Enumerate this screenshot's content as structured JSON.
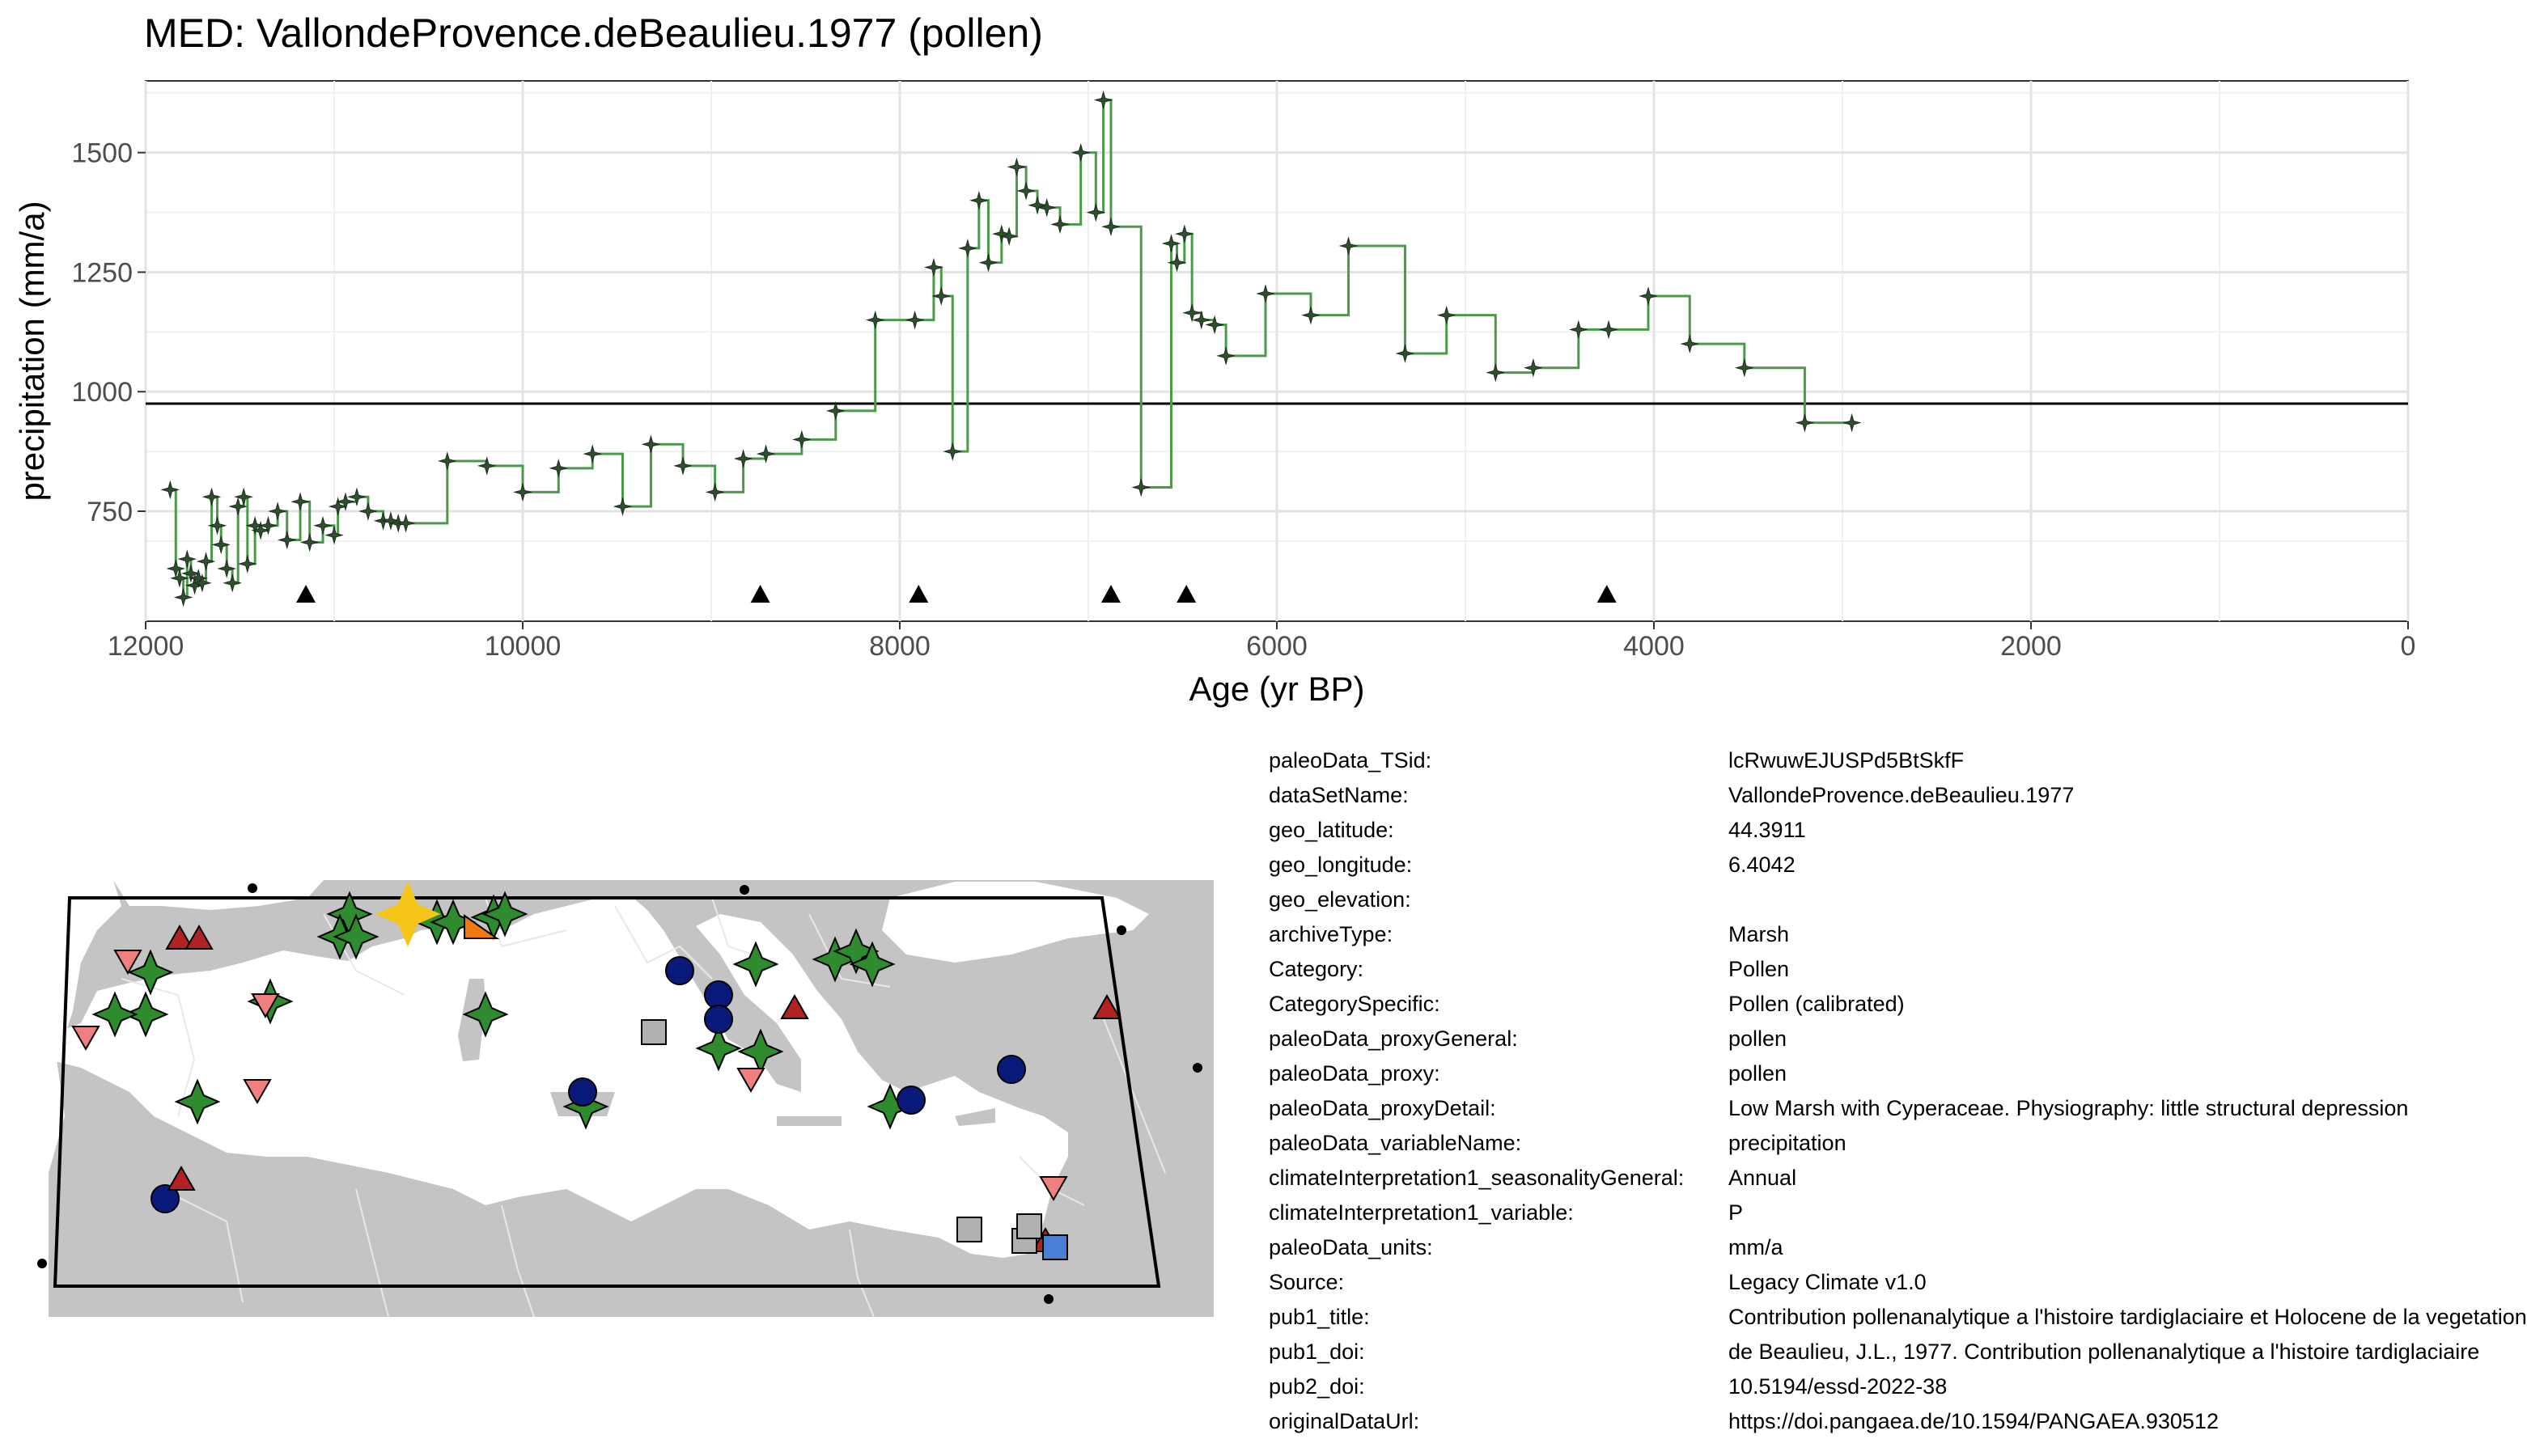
{
  "chart_data": {
    "type": "line",
    "title": "MED: VallondeProvence.deBeaulieu.1977 (pollen)",
    "xlabel": "Age (yr BP)",
    "ylabel": "precipitation (mm/a)",
    "x_reversed": true,
    "xlim": [
      12000,
      0
    ],
    "ylim": [
      520,
      1650
    ],
    "xticks": [
      12000,
      10000,
      8000,
      6000,
      4000,
      2000,
      0
    ],
    "xtick_labels": [
      "12000",
      "10000",
      "8000",
      "6000",
      "4000",
      "2000",
      "0"
    ],
    "yticks": [
      750,
      1000,
      1250,
      1500
    ],
    "ytick_labels": [
      "750",
      "1000",
      "1250",
      "1500"
    ],
    "grid": true,
    "step": true,
    "line_color": "#4a9a4a",
    "marker_color": "#2f4f2f",
    "reference_line": 975,
    "series": [
      {
        "x": [
          11870,
          11840,
          11820,
          11800,
          11780,
          11760,
          11740,
          11720,
          11700,
          11680,
          11650,
          11620,
          11600,
          11570,
          11540,
          11510,
          11480,
          11460,
          11420,
          11390,
          11350,
          11300,
          11250,
          11180,
          11130,
          11060,
          11000,
          10980,
          10940,
          10880,
          10820,
          10740,
          10700,
          10660,
          10620,
          10400,
          10190,
          10000,
          9810,
          9630,
          9470,
          9320,
          9150,
          8980,
          8830,
          8710,
          8520,
          8340,
          8130,
          7920,
          7820,
          7780,
          7720,
          7640,
          7580,
          7530,
          7460,
          7420,
          7380,
          7330,
          7270,
          7220,
          7150,
          7040,
          6960,
          6920,
          6880,
          6720,
          6560,
          6530,
          6490,
          6450,
          6400,
          6330,
          6270,
          6060,
          5820,
          5620,
          5320,
          5100,
          4840,
          4640,
          4400,
          4240,
          4030,
          3810,
          3520,
          3200,
          2950
        ],
        "y": [
          795,
          630,
          610,
          570,
          650,
          620,
          595,
          610,
          600,
          645,
          780,
          720,
          680,
          630,
          600,
          760,
          780,
          640,
          720,
          710,
          720,
          750,
          690,
          770,
          685,
          720,
          700,
          760,
          770,
          780,
          750,
          730,
          730,
          725,
          725,
          855,
          845,
          790,
          840,
          870,
          760,
          890,
          845,
          790,
          860,
          870,
          900,
          960,
          1150,
          1150,
          1260,
          1200,
          875,
          1300,
          1400,
          1270,
          1330,
          1325,
          1470,
          1420,
          1390,
          1385,
          1350,
          1500,
          1375,
          1610,
          1345,
          800,
          1310,
          1270,
          1330,
          1165,
          1150,
          1140,
          1075,
          1205,
          1160,
          1305,
          1080,
          1160,
          1040,
          1050,
          1130,
          1130,
          1200,
          1100,
          1050,
          935,
          935
        ]
      }
    ],
    "marker_triangles_x": [
      11150,
      8740,
      7900,
      6880,
      6480,
      4250
    ]
  },
  "metadata": [
    {
      "key": "paleoData_TSid:",
      "value": "lcRwuwEJUSPd5BtSkfF"
    },
    {
      "key": "dataSetName:",
      "value": "VallondeProvence.deBeaulieu.1977"
    },
    {
      "key": "geo_latitude:",
      "value": "44.3911"
    },
    {
      "key": "geo_longitude:",
      "value": "6.4042"
    },
    {
      "key": "geo_elevation:",
      "value": ""
    },
    {
      "key": "archiveType:",
      "value": "Marsh"
    },
    {
      "key": "Category:",
      "value": "Pollen"
    },
    {
      "key": "CategorySpecific:",
      "value": "Pollen (calibrated)"
    },
    {
      "key": "paleoData_proxyGeneral:",
      "value": "pollen"
    },
    {
      "key": "paleoData_proxy:",
      "value": "pollen"
    },
    {
      "key": "paleoData_proxyDetail:",
      "value": "Low Marsh with Cyperaceae. Physiography: little structural depression"
    },
    {
      "key": "paleoData_variableName:",
      "value": "precipitation"
    },
    {
      "key": "climateInterpretation1_seasonalityGeneral:",
      "value": "Annual"
    },
    {
      "key": "climateInterpretation1_variable:",
      "value": "P"
    },
    {
      "key": "paleoData_units:",
      "value": "mm/a"
    },
    {
      "key": "Source:",
      "value": "Legacy Climate v1.0"
    },
    {
      "key": "pub1_title:",
      "value": "Contribution pollenanalytique a l'histoire tardiglaciaire et Holocene de la vegetation"
    },
    {
      "key": "pub1_doi:",
      "value": "de Beaulieu, J.L., 1977. Contribution pollenanalytique a l'histoire tardiglaciaire"
    },
    {
      "key": "pub2_doi:",
      "value": "10.5194/essd-2022-38"
    },
    {
      "key": "originalDataUrl:",
      "value": "https://doi.pangaea.de/10.1594/PANGAEA.930512"
    }
  ],
  "map": {
    "land_color": "#c4c4c4",
    "sea_color": "#ffffff",
    "highlight_color": "#f5c518",
    "symbols": [
      {
        "shape": "star",
        "color": "#f5c518",
        "highlight": true
      },
      {
        "shape": "star",
        "color": "#2e8b2e"
      },
      {
        "shape": "circle",
        "color": "#0a1a7a"
      },
      {
        "shape": "triangle-up",
        "color": "#b22222"
      },
      {
        "shape": "triangle-down",
        "color": "#f08080"
      },
      {
        "shape": "square",
        "color": "#b0b0b0"
      },
      {
        "shape": "square",
        "color": "#4a7fd4"
      },
      {
        "shape": "triangle-right",
        "color": "#f07a10"
      }
    ]
  }
}
